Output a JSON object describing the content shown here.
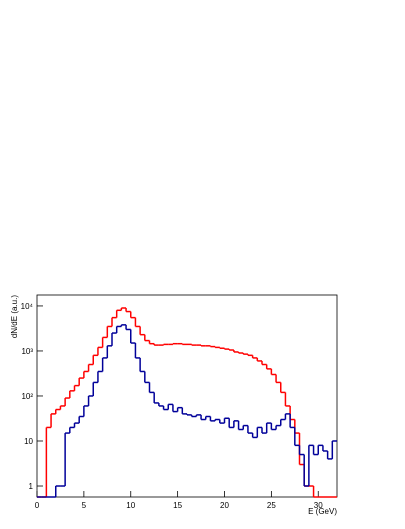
{
  "chart_data": {
    "type": "histogram",
    "xlabel": "E (GeV)",
    "ylabel": "dN/dE (a.u.)",
    "xlim": [
      0,
      32
    ],
    "ylim": [
      0.57,
      17500
    ],
    "log_y": true,
    "xticks": [
      0,
      5,
      10,
      15,
      20,
      25,
      30
    ],
    "yticks": [
      1,
      10,
      {
        "value": 100,
        "label": "10²"
      },
      {
        "value": 1000,
        "label": "10³"
      },
      {
        "value": 10000,
        "label": "10⁴"
      }
    ],
    "bins": [
      0,
      0.5,
      1,
      1.5,
      2,
      2.5,
      3,
      3.5,
      4,
      4.5,
      5,
      5.5,
      6,
      6.5,
      7,
      7.5,
      8,
      8.5,
      9,
      9.5,
      10,
      10.5,
      11,
      11.5,
      12,
      12.5,
      13,
      13.5,
      14,
      14.5,
      15,
      15.5,
      16,
      16.5,
      17,
      17.5,
      18,
      18.5,
      19,
      19.5,
      20,
      20.5,
      21,
      21.5,
      22,
      22.5,
      23,
      23.5,
      24,
      24.5,
      25,
      25.5,
      26,
      26.5,
      27,
      27.5,
      28,
      28.5,
      29,
      29.5,
      30,
      30.5,
      31,
      31.5,
      32
    ],
    "series": [
      {
        "color": "#ff0000",
        "values": [
          0,
          0,
          20,
          40,
          50,
          60,
          90,
          130,
          170,
          250,
          350,
          500,
          800,
          1200,
          2000,
          3500,
          5500,
          8000,
          9000,
          7500,
          5500,
          3500,
          2300,
          1700,
          1450,
          1350,
          1350,
          1400,
          1400,
          1450,
          1450,
          1400,
          1400,
          1350,
          1350,
          1300,
          1300,
          1250,
          1200,
          1150,
          1100,
          1050,
          950,
          900,
          850,
          800,
          700,
          600,
          500,
          400,
          300,
          200,
          120,
          60,
          30,
          15,
          3,
          1,
          1,
          0,
          0,
          0,
          0,
          0
        ]
      },
      {
        "color": "#000099",
        "values": [
          0,
          0,
          0,
          0,
          1,
          1,
          15,
          20,
          25,
          35,
          60,
          100,
          200,
          350,
          700,
          1300,
          2500,
          3500,
          3800,
          3000,
          1500,
          700,
          350,
          200,
          120,
          70,
          60,
          50,
          65,
          45,
          55,
          40,
          38,
          35,
          38,
          30,
          35,
          28,
          30,
          25,
          32,
          20,
          28,
          18,
          22,
          15,
          12,
          20,
          15,
          25,
          18,
          22,
          30,
          40,
          20,
          8,
          5,
          1,
          8,
          5,
          8,
          6,
          4,
          10
        ]
      }
    ]
  }
}
